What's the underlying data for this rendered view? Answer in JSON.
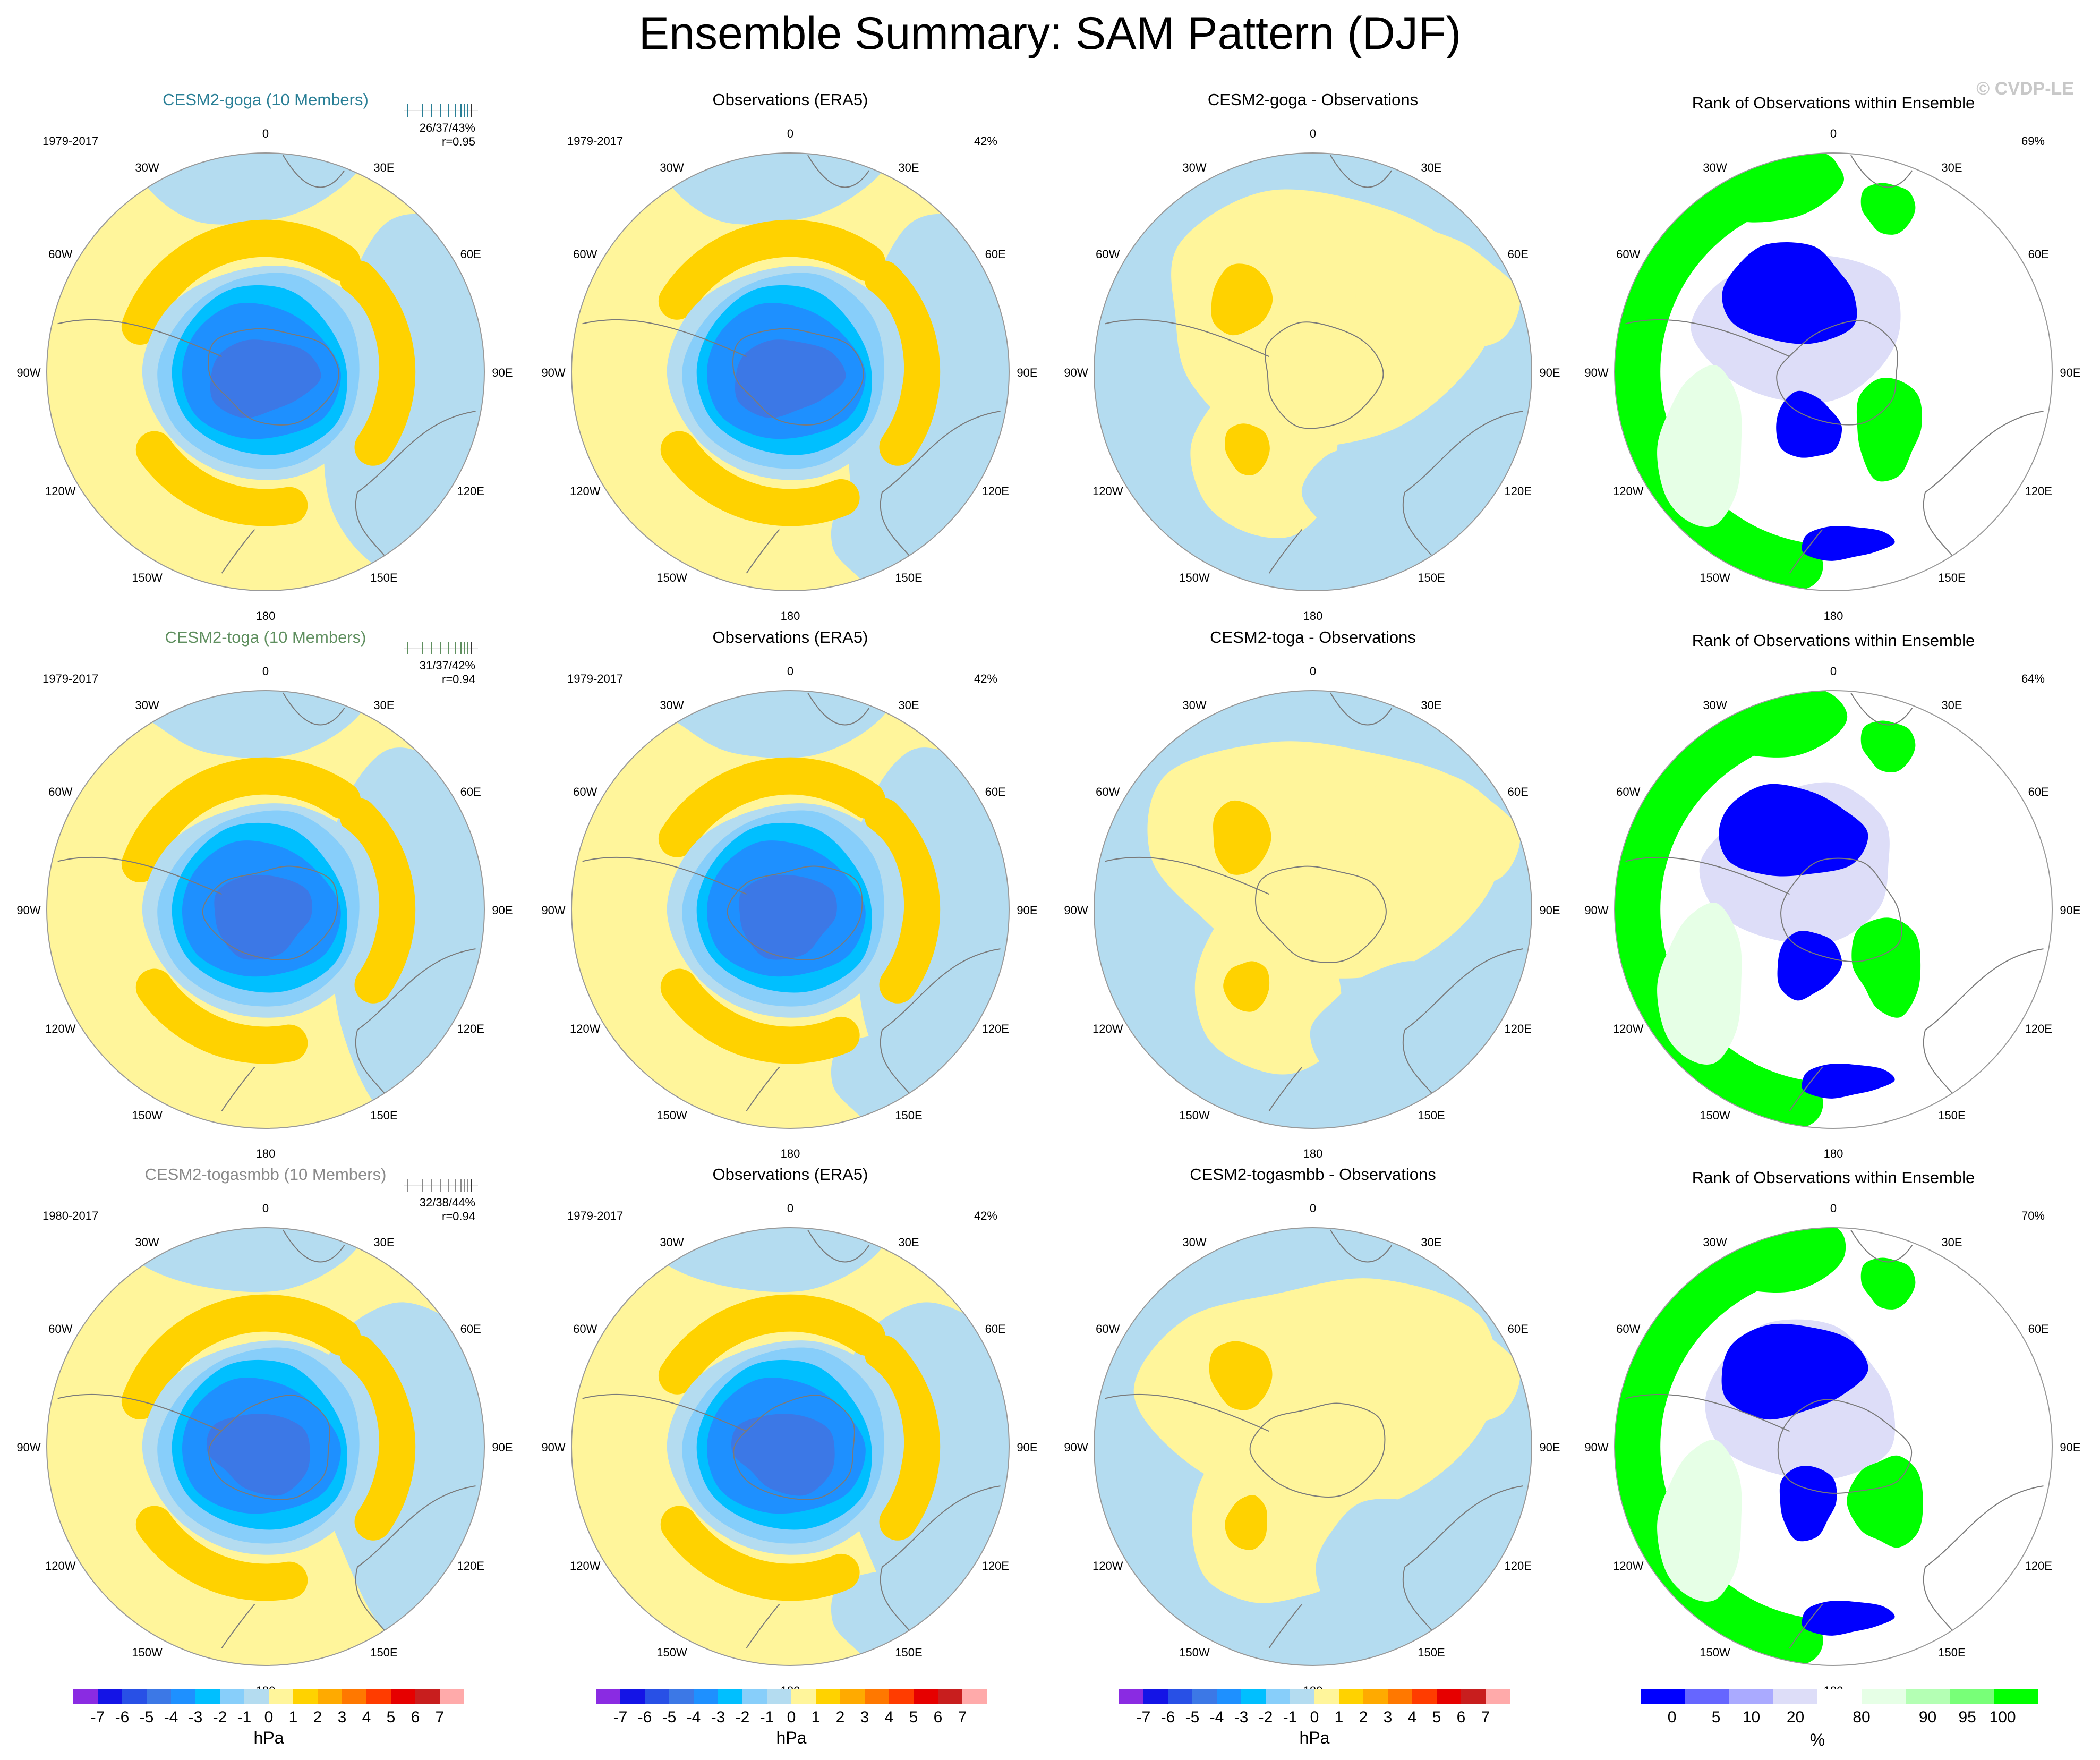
{
  "title": "Ensemble Summary: SAM Pattern (DJF)",
  "copyright": "© CVDP-LE",
  "longitude_labels": [
    "0",
    "30E",
    "60E",
    "90E",
    "120E",
    "150E",
    "180",
    "150W",
    "120W",
    "90W",
    "60W",
    "30W"
  ],
  "colors": {
    "land_outline": "#7a7a7a",
    "circle_outline": "#999999",
    "pressure_scale": [
      "#8a2be2",
      "#1414e6",
      "#2850e6",
      "#3c78e6",
      "#1e90ff",
      "#00bfff",
      "#87cefa",
      "#b4dcf0",
      "#fff59b",
      "#ffd200",
      "#ffaa00",
      "#ff7800",
      "#ff3c00",
      "#e60000",
      "#c81e1e",
      "#ffaaaa"
    ],
    "rank_scale": [
      "#0000ff",
      "#6666ff",
      "#aaaaff",
      "#ddddf8",
      "#ffffff",
      "#e6ffe6",
      "#b4ffb4",
      "#78ff78",
      "#00ff00"
    ]
  },
  "colorbars": {
    "pressure": {
      "labels": [
        "-7",
        "-6",
        "-5",
        "-4",
        "-3",
        "-2",
        "-1",
        "0",
        "1",
        "2",
        "3",
        "4",
        "5",
        "6",
        "7"
      ],
      "unit": "hPa"
    },
    "rank": {
      "labels": [
        "0",
        "5",
        "10",
        "20",
        "80",
        "90",
        "95",
        "100"
      ],
      "unit": "%"
    }
  },
  "rows": [
    {
      "model_title": "CESM2-goga (10 Members)",
      "model_color": "#2a7f96",
      "model_period": "1979-2017",
      "stats": "26/37/43%",
      "corr": "r=0.95",
      "obs_title": "Observations (ERA5)",
      "obs_period": "1979-2017",
      "obs_pct": "42%",
      "diff_title": "CESM2-goga - Observations",
      "rank_title": "Rank of Observations within Ensemble",
      "rank_pct": "69%"
    },
    {
      "model_title": "CESM2-toga (10 Members)",
      "model_color": "#5f8f5f",
      "model_period": "1979-2017",
      "stats": "31/37/42%",
      "corr": "r=0.94",
      "obs_title": "Observations (ERA5)",
      "obs_period": "1979-2017",
      "obs_pct": "42%",
      "diff_title": "CESM2-toga - Observations",
      "rank_title": "Rank of Observations within Ensemble",
      "rank_pct": "64%"
    },
    {
      "model_title": "CESM2-togasmbb (10 Members)",
      "model_color": "#8a8a8a",
      "model_period": "1980-2017",
      "stats": "32/38/44%",
      "corr": "r=0.94",
      "obs_title": "Observations (ERA5)",
      "obs_period": "1979-2017",
      "obs_pct": "42%",
      "diff_title": "CESM2-togasmbb - Observations",
      "rank_title": "Rank of Observations within Ensemble",
      "rank_pct": "70%"
    }
  ],
  "chart_data": [
    {
      "type": "heatmap",
      "title": "Ensemble Summary: SAM Pattern (DJF)",
      "projection": "south-polar stereographic",
      "variable": "sea level pressure SAM pattern",
      "units": "hPa",
      "contour_levels": [
        -7,
        -6,
        -5,
        -4,
        -3,
        -2,
        -1,
        0,
        1,
        2,
        3,
        4,
        5,
        6,
        7
      ],
      "panels": [
        {
          "row": 1,
          "title": "CESM2-goga (10 Members)",
          "period": "1979-2017",
          "stats": "26/37/43%",
          "r": 0.95,
          "pole_min": -5,
          "midlat_max": 1
        },
        {
          "row": 1,
          "title": "Observations (ERA5)",
          "period": "1979-2017",
          "pct": "42%",
          "pole_min": -5,
          "midlat_max": 1
        },
        {
          "row": 1,
          "title": "CESM2-goga - Observations",
          "range": [
            -1,
            1
          ]
        },
        {
          "row": 1,
          "title": "Rank of Observations within Ensemble",
          "units": "%",
          "pct": "69%"
        },
        {
          "row": 2,
          "title": "CESM2-toga (10 Members)",
          "period": "1979-2017",
          "stats": "31/37/42%",
          "r": 0.94,
          "pole_min": -5,
          "midlat_max": 1
        },
        {
          "row": 2,
          "title": "Observations (ERA5)",
          "period": "1979-2017",
          "pct": "42%",
          "pole_min": -5,
          "midlat_max": 1
        },
        {
          "row": 2,
          "title": "CESM2-toga - Observations",
          "range": [
            -1,
            2
          ]
        },
        {
          "row": 2,
          "title": "Rank of Observations within Ensemble",
          "units": "%",
          "pct": "64%"
        },
        {
          "row": 3,
          "title": "CESM2-togasmbb (10 Members)",
          "period": "1980-2017",
          "stats": "32/38/44%",
          "r": 0.94,
          "pole_min": -5,
          "midlat_max": 1
        },
        {
          "row": 3,
          "title": "Observations (ERA5)",
          "period": "1979-2017",
          "pct": "42%",
          "pole_min": -5,
          "midlat_max": 1
        },
        {
          "row": 3,
          "title": "CESM2-togasmbb - Observations",
          "range": [
            -1,
            1
          ]
        },
        {
          "row": 3,
          "title": "Rank of Observations within Ensemble",
          "units": "%",
          "pct": "70%"
        }
      ],
      "rank_levels": [
        0,
        5,
        10,
        20,
        80,
        90,
        95,
        100
      ]
    }
  ]
}
